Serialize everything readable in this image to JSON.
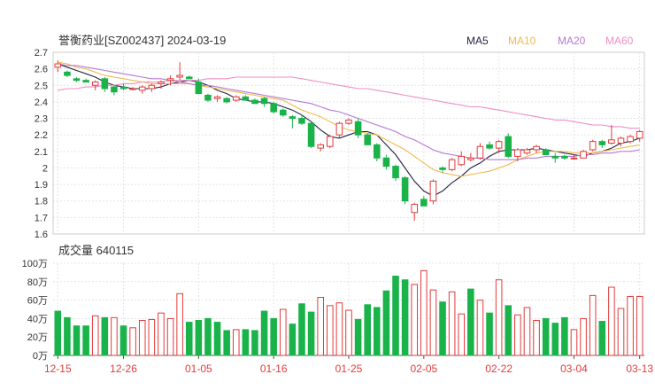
{
  "header": {
    "title": "誉衡药业[SZ002437] 2024-03-19",
    "legend": [
      {
        "label": "MA5",
        "color": "#222244"
      },
      {
        "label": "MA10",
        "color": "#f2b84b"
      },
      {
        "label": "MA20",
        "color": "#b57ad6"
      },
      {
        "label": "MA60",
        "color": "#ef8fc0"
      }
    ]
  },
  "volume_header": {
    "label": "成交量 640115"
  },
  "colors": {
    "up": "#e23b3b",
    "down": "#19b34a",
    "grid": "#e3e3e3",
    "axis_text": "#333333",
    "date_text": "#e23b3b"
  },
  "chart_data": [
    {
      "type": "candlestick",
      "title": "誉衡药业[SZ002437] 2024-03-19",
      "ylim": [
        1.6,
        2.7
      ],
      "yticks": [
        "2.7",
        "2.6",
        "2.5",
        "2.4",
        "2.3",
        "2.2",
        "2.1",
        "2",
        "1.9",
        "1.8",
        "1.7",
        "1.6"
      ],
      "ytick_values": [
        2.7,
        2.6,
        2.5,
        2.4,
        2.3,
        2.2,
        2.1,
        2.0,
        1.9,
        1.8,
        1.7,
        1.6
      ],
      "xticks": [
        {
          "label": "12-15",
          "index": 0
        },
        {
          "label": "12-26",
          "index": 7
        },
        {
          "label": "01-05",
          "index": 15
        },
        {
          "label": "01-16",
          "index": 23
        },
        {
          "label": "01-25",
          "index": 31
        },
        {
          "label": "02-05",
          "index": 39
        },
        {
          "label": "02-22",
          "index": 47
        },
        {
          "label": "03-04",
          "index": 55
        },
        {
          "label": "03-13",
          "index": 62
        }
      ],
      "ohlc": [
        [
          2.61,
          2.65,
          2.58,
          2.63
        ],
        [
          2.58,
          2.59,
          2.55,
          2.56
        ],
        [
          2.54,
          2.55,
          2.52,
          2.53
        ],
        [
          2.53,
          2.54,
          2.52,
          2.52
        ],
        [
          2.5,
          2.53,
          2.47,
          2.52
        ],
        [
          2.54,
          2.55,
          2.46,
          2.48
        ],
        [
          2.49,
          2.5,
          2.44,
          2.46
        ],
        [
          2.49,
          2.51,
          2.47,
          2.48
        ],
        [
          2.48,
          2.49,
          2.47,
          2.48
        ],
        [
          2.47,
          2.5,
          2.45,
          2.49
        ],
        [
          2.48,
          2.51,
          2.46,
          2.5
        ],
        [
          2.51,
          2.53,
          2.48,
          2.52
        ],
        [
          2.53,
          2.56,
          2.5,
          2.54
        ],
        [
          2.55,
          2.64,
          2.53,
          2.56
        ],
        [
          2.55,
          2.56,
          2.54,
          2.54
        ],
        [
          2.52,
          2.54,
          2.45,
          2.45
        ],
        [
          2.44,
          2.45,
          2.4,
          2.41
        ],
        [
          2.42,
          2.44,
          2.4,
          2.43
        ],
        [
          2.42,
          2.43,
          2.39,
          2.4
        ],
        [
          2.41,
          2.44,
          2.4,
          2.43
        ],
        [
          2.43,
          2.44,
          2.41,
          2.41
        ],
        [
          2.41,
          2.42,
          2.39,
          2.39
        ],
        [
          2.42,
          2.43,
          2.37,
          2.39
        ],
        [
          2.39,
          2.4,
          2.33,
          2.34
        ],
        [
          2.35,
          2.36,
          2.31,
          2.32
        ],
        [
          2.31,
          2.32,
          2.24,
          2.3
        ],
        [
          2.3,
          2.32,
          2.26,
          2.27
        ],
        [
          2.27,
          2.28,
          2.12,
          2.13
        ],
        [
          2.12,
          2.15,
          2.1,
          2.14
        ],
        [
          2.13,
          2.2,
          2.12,
          2.19
        ],
        [
          2.2,
          2.28,
          2.18,
          2.27
        ],
        [
          2.27,
          2.3,
          2.26,
          2.29
        ],
        [
          2.28,
          2.3,
          2.18,
          2.2
        ],
        [
          2.2,
          2.21,
          2.14,
          2.14
        ],
        [
          2.14,
          2.15,
          2.04,
          2.06
        ],
        [
          2.06,
          2.08,
          1.99,
          2.01
        ],
        [
          2.01,
          2.02,
          1.92,
          1.94
        ],
        [
          1.94,
          1.95,
          1.78,
          1.8
        ],
        [
          1.73,
          1.79,
          1.68,
          1.78
        ],
        [
          1.81,
          1.83,
          1.77,
          1.77
        ],
        [
          1.8,
          1.93,
          1.78,
          1.92
        ],
        [
          2.0,
          2.01,
          1.97,
          1.99
        ],
        [
          1.99,
          2.06,
          1.98,
          2.05
        ],
        [
          2.02,
          2.1,
          2.01,
          2.07
        ],
        [
          2.05,
          2.09,
          2.04,
          2.06
        ],
        [
          2.06,
          2.15,
          2.05,
          2.13
        ],
        [
          2.14,
          2.16,
          2.11,
          2.12
        ],
        [
          2.12,
          2.17,
          2.09,
          2.16
        ],
        [
          2.19,
          2.21,
          2.06,
          2.07
        ],
        [
          2.07,
          2.12,
          2.04,
          2.11
        ],
        [
          2.09,
          2.12,
          2.08,
          2.11
        ],
        [
          2.11,
          2.14,
          2.09,
          2.13
        ],
        [
          2.11,
          2.12,
          2.08,
          2.08
        ],
        [
          2.07,
          2.09,
          2.03,
          2.06
        ],
        [
          2.07,
          2.08,
          2.05,
          2.06
        ],
        [
          2.06,
          2.08,
          2.05,
          2.06
        ],
        [
          2.06,
          2.11,
          2.06,
          2.1
        ],
        [
          2.11,
          2.17,
          2.1,
          2.16
        ],
        [
          2.16,
          2.17,
          2.12,
          2.14
        ],
        [
          2.15,
          2.26,
          2.14,
          2.17
        ],
        [
          2.15,
          2.19,
          2.13,
          2.18
        ],
        [
          2.16,
          2.2,
          2.15,
          2.19
        ],
        [
          2.18,
          2.23,
          2.16,
          2.22
        ]
      ],
      "ma": {
        "MA5": [
          2.63,
          2.61,
          2.59,
          2.57,
          2.55,
          2.52,
          2.5,
          2.49,
          2.48,
          2.48,
          2.48,
          2.49,
          2.51,
          2.52,
          2.53,
          2.52,
          2.5,
          2.47,
          2.45,
          2.42,
          2.41,
          2.4,
          2.4,
          2.39,
          2.37,
          2.35,
          2.32,
          2.28,
          2.23,
          2.19,
          2.18,
          2.2,
          2.22,
          2.22,
          2.2,
          2.14,
          2.08,
          2.0,
          1.92,
          1.86,
          1.83,
          1.86,
          1.91,
          1.95,
          2.0,
          2.03,
          2.07,
          2.1,
          2.11,
          2.11,
          2.11,
          2.12,
          2.11,
          2.1,
          2.09,
          2.08,
          2.07,
          2.09,
          2.1,
          2.12,
          2.15,
          2.16,
          2.18
        ],
        "MA10": [
          2.64,
          2.63,
          2.61,
          2.6,
          2.58,
          2.56,
          2.55,
          2.54,
          2.53,
          2.52,
          2.51,
          2.51,
          2.51,
          2.51,
          2.51,
          2.5,
          2.49,
          2.48,
          2.47,
          2.46,
          2.45,
          2.44,
          2.43,
          2.42,
          2.41,
          2.38,
          2.35,
          2.33,
          2.31,
          2.28,
          2.25,
          2.23,
          2.22,
          2.21,
          2.2,
          2.17,
          2.14,
          2.11,
          2.07,
          2.03,
          1.99,
          1.97,
          1.96,
          1.95,
          1.96,
          1.97,
          1.98,
          2.0,
          2.02,
          2.05,
          2.07,
          2.09,
          2.1,
          2.1,
          2.1,
          2.09,
          2.09,
          2.09,
          2.1,
          2.11,
          2.12,
          2.13,
          2.14
        ],
        "MA20": [
          2.63,
          2.62,
          2.62,
          2.61,
          2.6,
          2.59,
          2.58,
          2.57,
          2.56,
          2.55,
          2.54,
          2.54,
          2.53,
          2.52,
          2.51,
          2.5,
          2.5,
          2.49,
          2.48,
          2.47,
          2.46,
          2.45,
          2.44,
          2.43,
          2.42,
          2.41,
          2.4,
          2.39,
          2.37,
          2.35,
          2.34,
          2.32,
          2.3,
          2.28,
          2.26,
          2.24,
          2.22,
          2.19,
          2.17,
          2.14,
          2.11,
          2.09,
          2.08,
          2.07,
          2.06,
          2.06,
          2.05,
          2.05,
          2.05,
          2.05,
          2.06,
          2.06,
          2.07,
          2.07,
          2.07,
          2.07,
          2.08,
          2.08,
          2.09,
          2.09,
          2.1,
          2.1,
          2.11
        ],
        "MA60": [
          2.47,
          2.48,
          2.48,
          2.49,
          2.49,
          2.5,
          2.5,
          2.51,
          2.51,
          2.52,
          2.52,
          2.52,
          2.53,
          2.53,
          2.53,
          2.53,
          2.54,
          2.54,
          2.54,
          2.55,
          2.55,
          2.55,
          2.55,
          2.55,
          2.55,
          2.55,
          2.54,
          2.53,
          2.52,
          2.51,
          2.5,
          2.49,
          2.48,
          2.48,
          2.47,
          2.46,
          2.45,
          2.44,
          2.43,
          2.42,
          2.41,
          2.4,
          2.39,
          2.38,
          2.37,
          2.37,
          2.36,
          2.35,
          2.34,
          2.33,
          2.32,
          2.31,
          2.3,
          2.29,
          2.29,
          2.28,
          2.27,
          2.26,
          2.26,
          2.25,
          2.25,
          2.24,
          2.24
        ]
      }
    },
    {
      "type": "bar",
      "title": "成交量 640115",
      "ylabel": "万",
      "ylim": [
        0,
        100
      ],
      "yticks": [
        "100万",
        "80万",
        "60万",
        "40万",
        "20万",
        "0万"
      ],
      "ytick_values": [
        100,
        80,
        60,
        40,
        20,
        0
      ],
      "values": [
        48,
        41,
        32,
        32,
        43,
        41,
        41,
        32,
        30,
        38,
        39,
        46,
        40,
        67,
        36,
        38,
        40,
        36,
        27,
        28,
        28,
        27,
        48,
        40,
        50,
        34,
        56,
        47,
        63,
        54,
        57,
        49,
        39,
        55,
        52,
        70,
        86,
        82,
        77,
        92,
        71,
        58,
        69,
        45,
        72,
        60,
        46,
        82,
        54,
        44,
        52,
        38,
        40,
        35,
        41,
        28,
        40,
        65,
        37,
        74,
        51,
        64,
        64
      ],
      "up_down": [
        "d",
        "d",
        "d",
        "d",
        "u",
        "d",
        "u",
        "d",
        "u",
        "u",
        "u",
        "u",
        "u",
        "u",
        "d",
        "d",
        "d",
        "d",
        "d",
        "u",
        "d",
        "d",
        "d",
        "d",
        "u",
        "d",
        "d",
        "d",
        "u",
        "u",
        "u",
        "u",
        "d",
        "d",
        "d",
        "d",
        "d",
        "d",
        "u",
        "u",
        "u",
        "d",
        "u",
        "u",
        "d",
        "u",
        "d",
        "u",
        "d",
        "u",
        "u",
        "u",
        "d",
        "d",
        "d",
        "u",
        "u",
        "u",
        "d",
        "u",
        "u",
        "u",
        "u"
      ]
    }
  ]
}
